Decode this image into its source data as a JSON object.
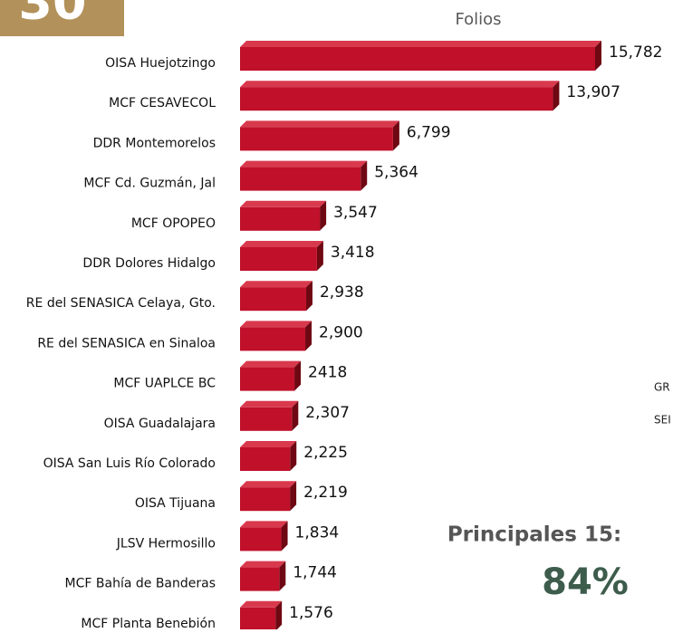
{
  "badge": "30",
  "side_texts": [
    "GR",
    "SEI"
  ],
  "annotations": [
    "Principales 15:",
    "84%"
  ],
  "chart_data": {
    "type": "bar",
    "title": "Folios",
    "color": "#c0102a",
    "categories": [
      "OISA Huejotzingo",
      "MCF CESAVECOL",
      "DDR Montemorelos",
      "MCF Cd. Guzmán, Jal",
      "MCF OPOPEO",
      "DDR Dolores Hidalgo",
      "RE del SENASICA Celaya, Gto.",
      "RE del SENASICA en Sinaloa",
      "MCF UAPLCE BC",
      "OISA Guadalajara",
      "OISA San Luis Río Colorado",
      "OISA Tijuana",
      "JLSV Hermosillo",
      "MCF Bahía de Banderas",
      "MCF Planta Benebión"
    ],
    "values": [
      15782,
      13907,
      6799,
      5364,
      3547,
      3418,
      2938,
      2900,
      2418,
      2307,
      2225,
      2219,
      1834,
      1744,
      1576
    ],
    "value_labels": [
      "15,782",
      "13,907",
      "6,799",
      "5,364",
      "3,547",
      "3,418",
      "2,938",
      "2,900",
      "2418",
      "2,307",
      "2,225",
      "2,219",
      "1,834",
      "1,744",
      "1,576"
    ]
  }
}
